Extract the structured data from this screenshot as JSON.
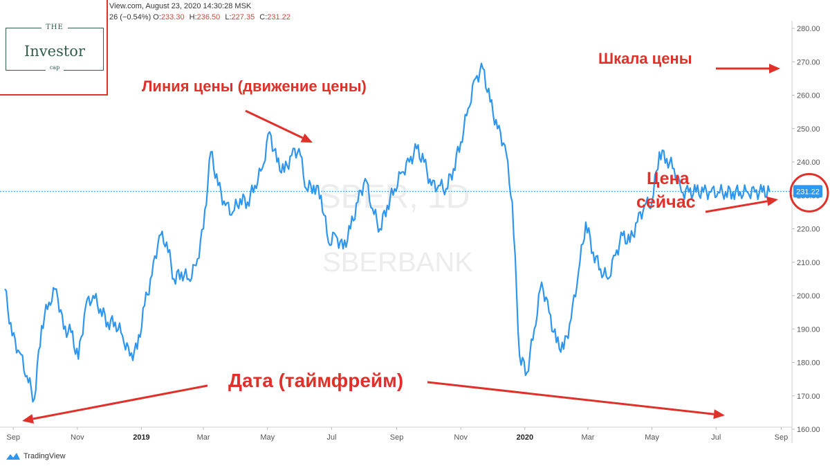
{
  "header": {
    "source_line": "View.com, August 23, 2020 14:30:28 MSK",
    "change_text": "26 (−0.54%)",
    "open_label": "O:",
    "open_value": "233.30",
    "high_label": "H:",
    "high_value": "236.50",
    "low_label": "L:",
    "low_value": "227.35",
    "close_label": "C:",
    "close_value": "231.22"
  },
  "logo": {
    "the": "THE",
    "name": "Investor",
    "cap": "cap"
  },
  "watermark": {
    "ticker": "SBER, 1D",
    "name": "SBERBANK"
  },
  "annotations": {
    "price_line": "Линия цены (движение цены)",
    "price_scale": "Шкала цены",
    "current_price_1": "Цена",
    "current_price_2": "сейчас",
    "date_timeframe": "Дата (таймфрейм)"
  },
  "footer": {
    "brand": "TradingView"
  },
  "colors": {
    "line": "#2f96ee",
    "annotation": "#e0302a",
    "axis_text": "#555555",
    "price_tag": "#2f96ee"
  },
  "chart_data": {
    "type": "line",
    "ylim": [
      160,
      280
    ],
    "yticks": [
      "160.00",
      "170.00",
      "180.00",
      "190.00",
      "200.00",
      "210.00",
      "220.00",
      "230.00",
      "240.00",
      "250.00",
      "260.00",
      "270.00",
      "280.00"
    ],
    "xticks": [
      "Sep",
      "Nov",
      "2019",
      "Mar",
      "May",
      "Jul",
      "Sep",
      "Nov",
      "2020",
      "Mar",
      "May",
      "Jul",
      "Sep"
    ],
    "current_price": 231.22,
    "current_price_label": "231.22",
    "x": [
      "2018-08-24",
      "2018-08-31",
      "2018-09-07",
      "2018-09-14",
      "2018-09-21",
      "2018-09-28",
      "2018-10-05",
      "2018-10-12",
      "2018-10-19",
      "2018-10-26",
      "2018-11-02",
      "2018-11-09",
      "2018-11-16",
      "2018-11-23",
      "2018-11-30",
      "2018-12-07",
      "2018-12-14",
      "2018-12-21",
      "2018-12-28",
      "2019-01-04",
      "2019-01-11",
      "2019-01-18",
      "2019-01-25",
      "2019-02-01",
      "2019-02-08",
      "2019-02-15",
      "2019-02-22",
      "2019-03-01",
      "2019-03-08",
      "2019-03-15",
      "2019-03-22",
      "2019-03-29",
      "2019-04-05",
      "2019-04-12",
      "2019-04-19",
      "2019-04-26",
      "2019-05-03",
      "2019-05-10",
      "2019-05-17",
      "2019-05-24",
      "2019-05-31",
      "2019-06-07",
      "2019-06-14",
      "2019-06-21",
      "2019-06-28",
      "2019-07-05",
      "2019-07-12",
      "2019-07-19",
      "2019-07-26",
      "2019-08-02",
      "2019-08-09",
      "2019-08-16",
      "2019-08-23",
      "2019-08-30",
      "2019-09-06",
      "2019-09-13",
      "2019-09-20",
      "2019-09-27",
      "2019-10-04",
      "2019-10-11",
      "2019-10-18",
      "2019-10-25",
      "2019-11-01",
      "2019-11-08",
      "2019-11-15",
      "2019-11-22",
      "2019-11-29",
      "2019-12-06",
      "2019-12-13",
      "2019-12-20",
      "2019-12-27",
      "2020-01-03",
      "2020-01-10",
      "2020-01-17",
      "2020-01-24",
      "2020-01-31",
      "2020-02-07",
      "2020-02-14",
      "2020-02-21",
      "2020-02-28",
      "2020-03-06",
      "2020-03-13",
      "2020-03-20",
      "2020-03-27",
      "2020-04-03",
      "2020-04-10",
      "2020-04-17",
      "2020-04-24",
      "2020-05-01",
      "2020-05-08",
      "2020-05-15",
      "2020-05-22",
      "2020-05-29",
      "2020-06-05",
      "2020-06-12",
      "2020-06-19",
      "2020-06-26",
      "2020-07-03",
      "2020-07-10",
      "2020-07-17",
      "2020-07-24",
      "2020-07-31",
      "2020-08-07",
      "2020-08-14",
      "2020-08-21"
    ],
    "values": [
      202,
      188,
      183,
      176,
      169,
      191,
      198,
      202,
      190,
      189,
      181,
      197,
      200,
      196,
      192,
      192,
      188,
      182,
      184,
      197,
      206,
      218,
      216,
      205,
      207,
      205,
      209,
      220,
      243,
      233,
      227,
      225,
      229,
      228,
      233,
      238,
      249,
      240,
      237,
      242,
      244,
      232,
      233,
      230,
      216,
      218,
      214,
      220,
      228,
      235,
      226,
      220,
      227,
      232,
      237,
      240,
      244,
      240,
      233,
      233,
      232,
      238,
      246,
      256,
      265,
      268,
      258,
      250,
      245,
      228,
      182,
      177,
      190,
      204,
      195,
      186,
      184,
      193,
      207,
      222,
      213,
      208,
      205,
      212,
      218,
      216,
      222,
      227,
      228,
      243,
      241,
      238,
      231,
      231,
      231,
      231,
      231,
      231,
      231,
      231,
      231,
      231,
      231,
      231,
      231
    ]
  }
}
